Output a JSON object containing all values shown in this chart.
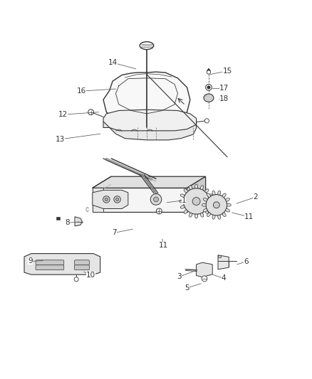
{
  "bg_color": "#ffffff",
  "line_color": "#333333",
  "label_color": "#333333",
  "fig_width": 4.38,
  "fig_height": 5.33,
  "dpi": 100,
  "label_positions": {
    "14": [
      0.36,
      0.91,
      0.435,
      0.89
    ],
    "16": [
      0.26,
      0.818,
      0.37,
      0.825
    ],
    "12": [
      0.2,
      0.742,
      0.315,
      0.75
    ],
    "13": [
      0.19,
      0.662,
      0.32,
      0.68
    ],
    "15": [
      0.73,
      0.883,
      0.675,
      0.872
    ],
    "17": [
      0.72,
      0.828,
      0.682,
      0.828
    ],
    "18": [
      0.72,
      0.792,
      0.703,
      0.792
    ],
    "1": [
      0.59,
      0.465,
      0.535,
      0.458
    ],
    "2": [
      0.82,
      0.475,
      0.76,
      0.455
    ],
    "11a": [
      0.8,
      0.412,
      0.745,
      0.425
    ],
    "11b": [
      0.525,
      0.32,
      0.52,
      0.34
    ],
    "7": [
      0.365,
      0.36,
      0.425,
      0.372
    ],
    "8": [
      0.215,
      0.393,
      0.265,
      0.395
    ],
    "9": [
      0.095,
      0.268,
      0.135,
      0.27
    ],
    "10": [
      0.29,
      0.222,
      0.268,
      0.234
    ],
    "3": [
      0.575,
      0.218,
      0.628,
      0.238
    ],
    "4": [
      0.718,
      0.213,
      0.683,
      0.225
    ],
    "5": [
      0.6,
      0.182,
      0.645,
      0.196
    ],
    "6": [
      0.79,
      0.267,
      0.762,
      0.258
    ]
  },
  "display_labels": {
    "14": "14",
    "16": "16",
    "12": "12",
    "13": "13",
    "15": "15",
    "17": "17",
    "18": "18",
    "1": "1",
    "2": "2",
    "11a": "11",
    "11b": "11",
    "7": "7",
    "8": "8",
    "9": "9",
    "10": "10",
    "3": "3",
    "4": "4",
    "5": "5",
    "6": "6"
  }
}
